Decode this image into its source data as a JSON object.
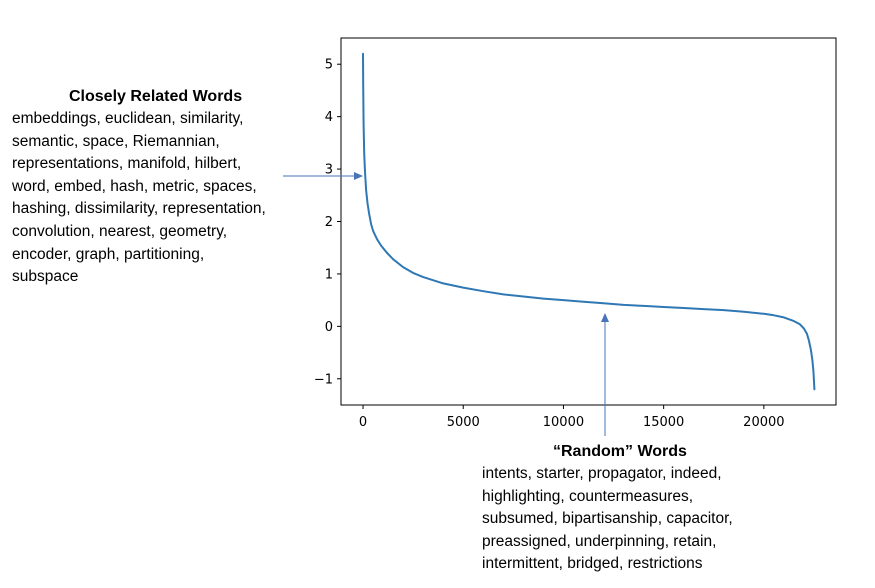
{
  "chart_data": {
    "type": "line",
    "title": "",
    "xlabel": "",
    "ylabel": "",
    "xlim": [
      -1100,
      23600
    ],
    "ylim": [
      -1.5,
      5.5
    ],
    "xticks": [
      0,
      5000,
      10000,
      15000,
      20000
    ],
    "xtick_labels": [
      "0",
      "5000",
      "10000",
      "15000",
      "20000"
    ],
    "yticks": [
      -1,
      0,
      1,
      2,
      3,
      4,
      5
    ],
    "ytick_labels": [
      "−1",
      "0",
      "1",
      "2",
      "3",
      "4",
      "5"
    ],
    "grid": false,
    "line_color": "#2f78b4",
    "series": [
      {
        "x": [
          0,
          10,
          30,
          60,
          100,
          150,
          220,
          300,
          400,
          500,
          700,
          900,
          1200,
          1500,
          2000,
          2500,
          3000,
          4000,
          5000,
          6000,
          7000,
          8000,
          9000,
          10000,
          11000,
          12000,
          13000,
          14000,
          15000,
          16000,
          17000,
          18000,
          19000,
          20000,
          20500,
          21000,
          21500,
          21800,
          22000,
          22150,
          22250,
          22350,
          22420,
          22470,
          22500,
          22520
        ],
        "y": [
          5.2,
          4.6,
          3.85,
          3.3,
          2.95,
          2.6,
          2.35,
          2.15,
          1.95,
          1.82,
          1.66,
          1.54,
          1.4,
          1.28,
          1.13,
          1.02,
          0.94,
          0.82,
          0.74,
          0.67,
          0.61,
          0.57,
          0.53,
          0.5,
          0.47,
          0.44,
          0.41,
          0.39,
          0.37,
          0.35,
          0.33,
          0.31,
          0.28,
          0.24,
          0.21,
          0.17,
          0.1,
          0.04,
          -0.04,
          -0.14,
          -0.27,
          -0.45,
          -0.65,
          -0.85,
          -1.05,
          -1.2
        ]
      }
    ],
    "annotations": [
      {
        "title": "Closely Related Words",
        "lines": [
          "embeddings, euclidean, similarity,",
          "semantic, space, Riemannian,",
          "representations, manifold, hilbert,",
          "word, embed, hash, metric, spaces,",
          "hashing, dissimilarity, representation,",
          "convolution, nearest, geometry,",
          "encoder, graph, partitioning,",
          "subspace"
        ]
      },
      {
        "title": "“Random” Words",
        "lines": [
          "intents, starter, propagator, indeed,",
          "highlighting, countermeasures,",
          "subsumed, bipartisanship, capacitor,",
          "preassigned, underpinning, retain,",
          "intermittent, bridged, restrictions"
        ]
      }
    ],
    "arrow_color": "#4a74b8"
  }
}
